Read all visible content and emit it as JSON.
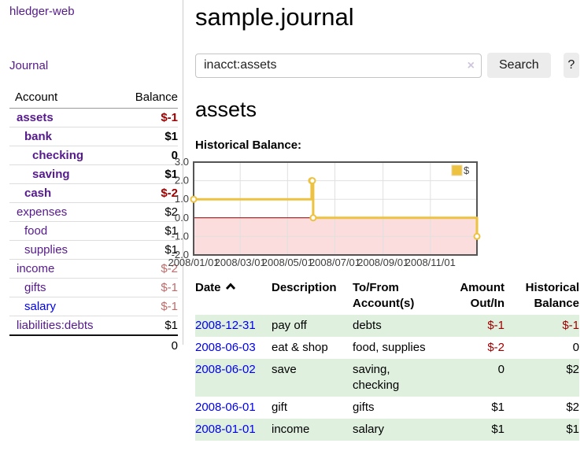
{
  "app": {
    "brand": "hledger-web",
    "nav_journal": "Journal"
  },
  "sidebar": {
    "header": {
      "account": "Account",
      "balance": "Balance"
    },
    "accounts": [
      {
        "name": "assets",
        "balance": "$-1"
      },
      {
        "name": "bank",
        "balance": "$1"
      },
      {
        "name": "checking",
        "balance": "0"
      },
      {
        "name": "saving",
        "balance": "$1"
      },
      {
        "name": "cash",
        "balance": "$-2"
      },
      {
        "name": "expenses",
        "balance": "$2"
      },
      {
        "name": "food",
        "balance": "$1"
      },
      {
        "name": "supplies",
        "balance": "$1"
      },
      {
        "name": "income",
        "balance": "$-2"
      },
      {
        "name": "gifts",
        "balance": "$-1"
      },
      {
        "name": "salary",
        "balance": "$-1"
      },
      {
        "name": "liabilities:debts",
        "balance": "$1"
      }
    ],
    "total": "0"
  },
  "header": {
    "title": "sample.journal"
  },
  "search": {
    "value": "inacct:assets",
    "clear_icon": "×",
    "button_label": "Search",
    "help_label": "?"
  },
  "account_page": {
    "title": "assets",
    "chart_label": "Historical Balance:"
  },
  "chart_data": {
    "type": "line",
    "title": "Historical Balance:",
    "series": [
      {
        "name": "$",
        "color": "#edc240",
        "steps": true,
        "points": [
          [
            "2008-01-01",
            1.0
          ],
          [
            "2008-06-01",
            2.0
          ],
          [
            "2008-06-02",
            2.0
          ],
          [
            "2008-06-03",
            0.0
          ],
          [
            "2008-12-31",
            -1.0
          ]
        ]
      }
    ],
    "ylim": [
      -2.0,
      3.0
    ],
    "yticks": [
      "3.0",
      "2.0",
      "1.0",
      "0.0",
      "-1.0",
      "-2.0"
    ],
    "ytick_values": [
      3,
      2,
      1,
      0,
      -1,
      -2
    ],
    "xlim": [
      "2008-01-01",
      "2008-12-31"
    ],
    "xticks": [
      "2008/01/01",
      "2008/03/01",
      "2008/05/01",
      "2008/07/01",
      "2008/09/01",
      "2008/11/01"
    ],
    "legend": {
      "label": "$",
      "position": "top-right"
    },
    "colors": {
      "line": "#edc240",
      "marker_fill": "#ffffff",
      "negative_region": "#fbdddd",
      "zero_line": "#8b0000",
      "grid": "#e0e0e0",
      "border": "#545454",
      "tick_text": "#3c3c3c"
    }
  },
  "register": {
    "columns": {
      "date": "Date",
      "description": "Description",
      "accounts": "To/From Account(s)",
      "amount": "Amount Out/In",
      "balance": "Historical Balance"
    },
    "rows": [
      {
        "date": "2008-12-31",
        "description": "pay off",
        "accounts": "debts",
        "amount": "$-1",
        "balance": "$-1"
      },
      {
        "date": "2008-06-03",
        "description": "eat & shop",
        "accounts": "food, supplies",
        "amount": "$-2",
        "balance": "0"
      },
      {
        "date": "2008-06-02",
        "description": "save",
        "accounts": "saving,\nchecking",
        "amount": "0",
        "balance": "$2"
      },
      {
        "date": "2008-06-01",
        "description": "gift",
        "accounts": "gifts",
        "amount": "$1",
        "balance": "$2"
      },
      {
        "date": "2008-01-01",
        "description": "income",
        "accounts": "salary",
        "amount": "$1",
        "balance": "$1"
      }
    ]
  }
}
